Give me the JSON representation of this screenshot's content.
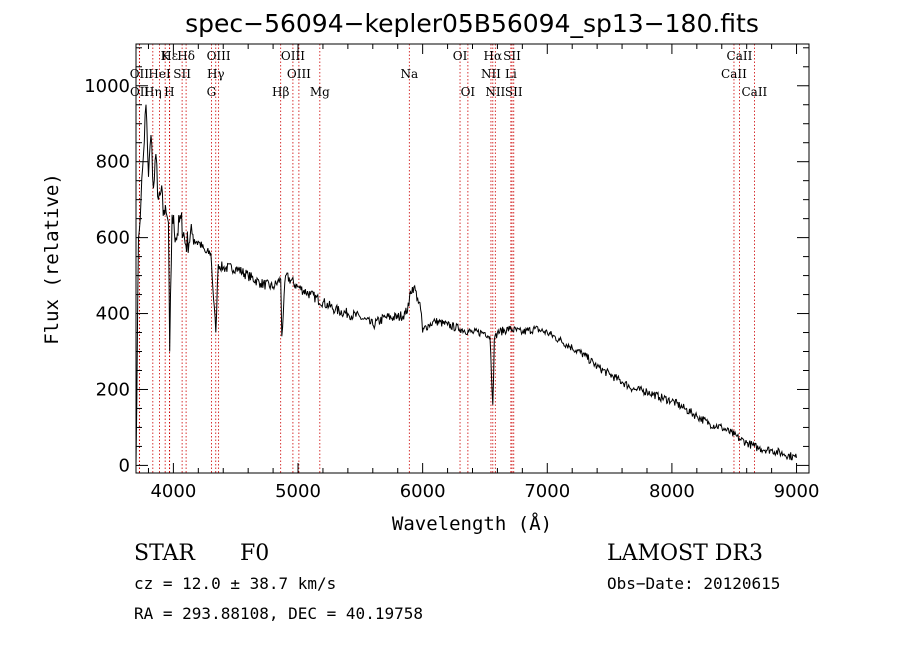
{
  "chart_data": {
    "type": "line",
    "title": "spec−56094−kepler05B56094_sp13−180.fits",
    "xlabel": "Wavelength (Å)",
    "ylabel": "Flux (relative)",
    "xlim": [
      3700,
      9100
    ],
    "ylim": [
      -20,
      1110
    ],
    "x_ticks": [
      4000,
      5000,
      6000,
      7000,
      8000,
      9000
    ],
    "x_tick_labels": [
      "4000",
      "5000",
      "6000",
      "7000",
      "8000",
      "9000"
    ],
    "y_ticks": [
      0,
      200,
      400,
      600,
      800,
      1000
    ],
    "y_tick_labels": [
      "0",
      "200",
      "400",
      "600",
      "800",
      "1000"
    ],
    "series": [
      {
        "name": "flux",
        "color": "#000000",
        "x": [
          3700,
          3720,
          3740,
          3760,
          3780,
          3800,
          3820,
          3840,
          3860,
          3880,
          3900,
          3930,
          3960,
          3970,
          3990,
          4020,
          4060,
          4100,
          4150,
          4200,
          4260,
          4300,
          4340,
          4360,
          4400,
          4500,
          4600,
          4700,
          4800,
          4861,
          4870,
          4900,
          5000,
          5100,
          5200,
          5300,
          5400,
          5500,
          5600,
          5700,
          5800,
          5860,
          5890,
          5900,
          5930,
          5960,
          5990,
          6000,
          6010,
          6050,
          6100,
          6200,
          6300,
          6400,
          6500,
          6540,
          6563,
          6575,
          6600,
          6700,
          6800,
          6900,
          7000,
          7100,
          7200,
          7300,
          7400,
          7500,
          7600,
          7700,
          7800,
          7900,
          8000,
          8100,
          8200,
          8300,
          8400,
          8500,
          8542,
          8600,
          8662,
          8700,
          8800,
          8900,
          9000
        ],
        "y": [
          0,
          600,
          700,
          820,
          950,
          760,
          870,
          730,
          820,
          700,
          720,
          660,
          640,
          300,
          660,
          600,
          650,
          580,
          610,
          590,
          560,
          560,
          350,
          530,
          520,
          520,
          500,
          480,
          470,
          490,
          340,
          500,
          470,
          450,
          430,
          410,
          400,
          390,
          370,
          390,
          390,
          400,
          420,
          460,
          470,
          440,
          400,
          350,
          360,
          370,
          380,
          370,
          360,
          350,
          350,
          340,
          160,
          330,
          350,
          360,
          350,
          360,
          350,
          330,
          310,
          290,
          260,
          240,
          220,
          200,
          195,
          180,
          170,
          150,
          130,
          110,
          100,
          80,
          70,
          60,
          50,
          45,
          40,
          30,
          20
        ]
      }
    ],
    "lines": [
      {
        "name": "Hε",
        "x": 3970,
        "row": 0
      },
      {
        "name": "K",
        "x": 3934,
        "row": 0
      },
      {
        "name": "Hδ",
        "x": 4102,
        "row": 0
      },
      {
        "name": "OIII",
        "x": 4363,
        "row": 0
      },
      {
        "name": "OIII",
        "x": 4959,
        "row": 0
      },
      {
        "name": "OI",
        "x": 6300,
        "row": 0
      },
      {
        "name": "Hα",
        "x": 6563,
        "row": 0
      },
      {
        "name": "SII",
        "x": 6717,
        "row": 0
      },
      {
        "name": "CaII",
        "x": 8542,
        "row": 0
      },
      {
        "name": "OII",
        "x": 3727,
        "row": 1
      },
      {
        "name": "HeI",
        "x": 3889,
        "row": 1
      },
      {
        "name": "SII",
        "x": 4070,
        "row": 1
      },
      {
        "name": "Hγ",
        "x": 4340,
        "row": 1
      },
      {
        "name": "OIII",
        "x": 5007,
        "row": 1
      },
      {
        "name": "Na",
        "x": 5893,
        "row": 1
      },
      {
        "name": "NII",
        "x": 6548,
        "row": 1
      },
      {
        "name": "Li",
        "x": 6708,
        "row": 1
      },
      {
        "name": "CaII",
        "x": 8498,
        "row": 1
      },
      {
        "name": "OII",
        "x": 3729,
        "row": 2
      },
      {
        "name": "Hη",
        "x": 3835,
        "row": 2
      },
      {
        "name": "H",
        "x": 3968,
        "row": 2
      },
      {
        "name": "G",
        "x": 4305,
        "row": 2
      },
      {
        "name": "Hβ",
        "x": 4861,
        "row": 2
      },
      {
        "name": "Mg",
        "x": 5175,
        "row": 2
      },
      {
        "name": "OI",
        "x": 6363,
        "row": 2
      },
      {
        "name": "NII",
        "x": 6583,
        "row": 2
      },
      {
        "name": "SII",
        "x": 6731,
        "row": 2
      },
      {
        "name": "CaII",
        "x": 8662,
        "row": 2
      }
    ],
    "line_color": "#cc0000"
  },
  "info": {
    "class": "STAR",
    "subclass": "F0",
    "survey": "LAMOST DR3",
    "cz": "cz = 12.0 ± 38.7 km/s",
    "obs_date": "Obs−Date: 20120615",
    "coords": "RA = 293.88108, DEC =  40.19758"
  }
}
